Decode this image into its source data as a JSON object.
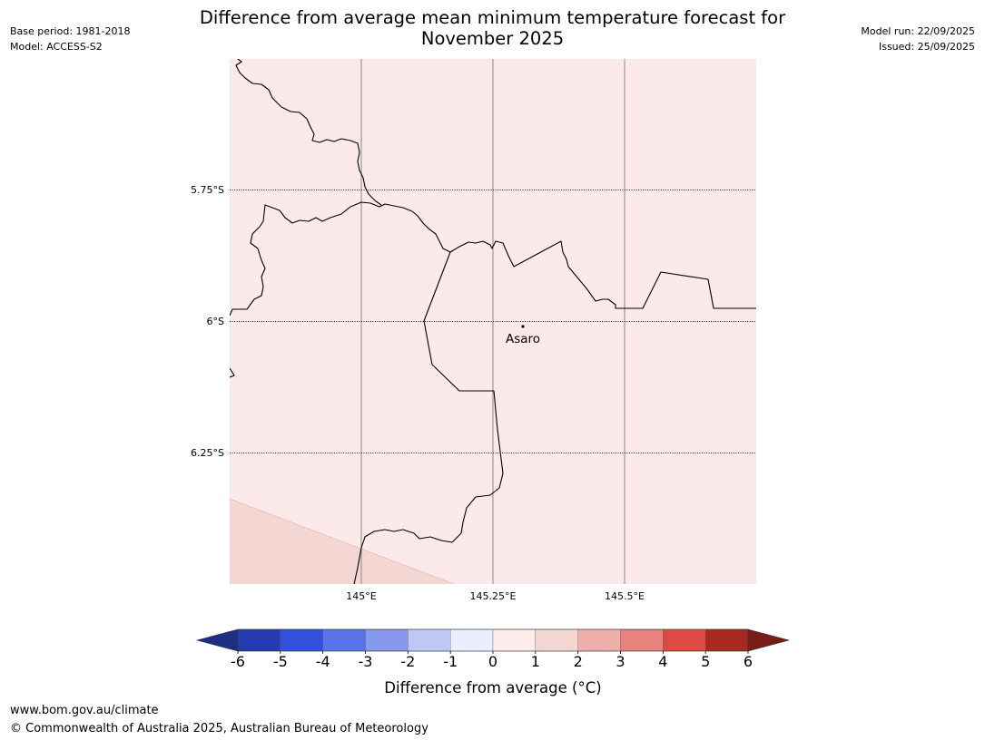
{
  "title": {
    "line1": "Difference from average mean minimum temperature forecast for",
    "line2": "November 2025"
  },
  "meta_left": {
    "base_period": "Base period: 1981-2018",
    "model": "Model: ACCESS-S2"
  },
  "meta_right": {
    "model_run": "Model run: 22/09/2025",
    "issued": "Issued: 25/09/2025"
  },
  "map": {
    "lat_labels": [
      "5.75°S",
      "6°S",
      "6.25°S"
    ],
    "lon_labels": [
      "145°E",
      "145.25°E",
      "145.5°E"
    ],
    "places": [
      {
        "name": "Asaro"
      }
    ],
    "background_color": "#fbeae9",
    "region_color": "#f4d6d3"
  },
  "colorbar": {
    "ticks": [
      "-6",
      "-5",
      "-4",
      "-3",
      "-2",
      "-1",
      "0",
      "1",
      "2",
      "3",
      "4",
      "5",
      "6"
    ],
    "colors": [
      "#1f2e85",
      "#263ab0",
      "#3150dc",
      "#5a73e6",
      "#8698ee",
      "#c0c8f6",
      "#ebeefc",
      "#fcebea",
      "#f4d6d3",
      "#eeb0ab",
      "#e6837e",
      "#db4b41",
      "#a82920",
      "#7a1d16"
    ],
    "label": "Difference from average (°C)"
  },
  "footer": {
    "url": "www.bom.gov.au/climate",
    "copyright": "© Commonwealth of Australia 2025, Australian Bureau of Meteorology"
  }
}
